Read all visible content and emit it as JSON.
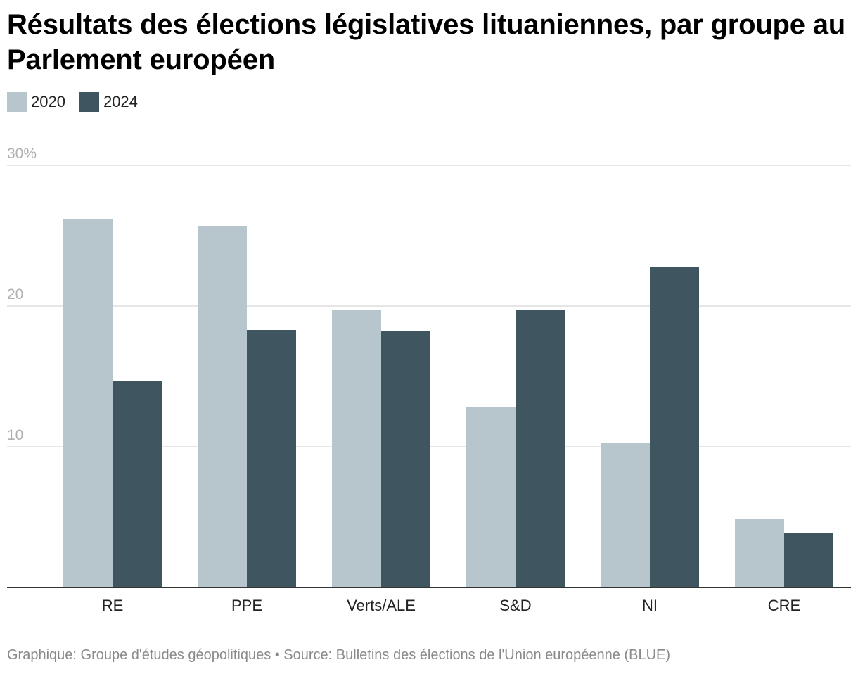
{
  "chart_data": {
    "type": "bar",
    "title": "Résultats des élections législatives lituaniennes, par groupe au Parlement européen",
    "xlabel": "",
    "ylabel": "",
    "ylim": [
      0,
      30
    ],
    "y_ticks": [
      {
        "value": 30,
        "label": "30%"
      },
      {
        "value": 20,
        "label": "20"
      },
      {
        "value": 10,
        "label": "10"
      }
    ],
    "grid": true,
    "legend_position": "top-left",
    "categories": [
      "RE",
      "PPE",
      "Verts/ALE",
      "S&D",
      "NI",
      "CRE"
    ],
    "series": [
      {
        "name": "2020",
        "color": "#b7c5cd",
        "values": [
          26.2,
          25.7,
          19.7,
          12.8,
          10.3,
          4.9
        ]
      },
      {
        "name": "2024",
        "color": "#3f5560",
        "values": [
          14.7,
          18.3,
          18.2,
          19.7,
          22.8,
          3.9
        ]
      }
    ]
  },
  "footer": {
    "credit": "Graphique: Groupe d'études géopolitiques • Source: Bulletins des élections de l'Union européenne (BLUE)"
  }
}
